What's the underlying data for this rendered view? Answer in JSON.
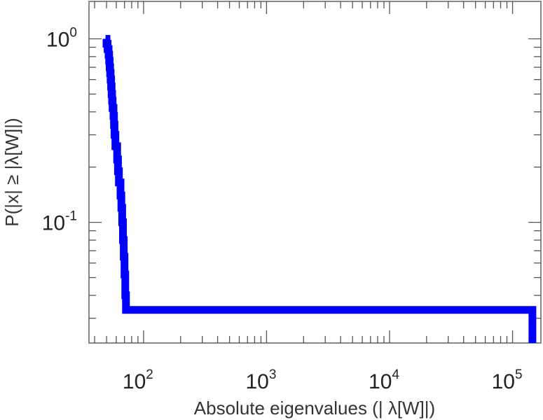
{
  "chart_data": {
    "type": "line",
    "title": "",
    "xlabel": "Absolute eigenvalues (|     λ[W]|)",
    "ylabel": "P(|x|  ≥ |λ[W]|)",
    "x_scale": "log",
    "y_scale": "log",
    "xlim": [
      36,
      170000
    ],
    "ylim": [
      0.022,
      1.6
    ],
    "x_ticks": [
      {
        "value": 100,
        "base": "10",
        "exp": "2"
      },
      {
        "value": 1000,
        "base": "10",
        "exp": "3"
      },
      {
        "value": 10000,
        "base": "10",
        "exp": "4"
      },
      {
        "value": 100000,
        "base": "10",
        "exp": "5"
      }
    ],
    "y_ticks": [
      {
        "value": 1,
        "base": "10",
        "exp": "0"
      },
      {
        "value": 0.1,
        "base": "10",
        "exp": "-1"
      }
    ],
    "grid": false,
    "series": [
      {
        "color": "#0000ff",
        "step": true,
        "points": [
          [
            49.0,
            1.0
          ],
          [
            50.0,
            0.94
          ],
          [
            51.0,
            0.88
          ],
          [
            52.0,
            0.82
          ],
          [
            52.5,
            0.76
          ],
          [
            53.0,
            0.7
          ],
          [
            53.5,
            0.65
          ],
          [
            54.0,
            0.6
          ],
          [
            54.5,
            0.55
          ],
          [
            55.0,
            0.5
          ],
          [
            55.5,
            0.46
          ],
          [
            56.0,
            0.42
          ],
          [
            57.0,
            0.38
          ],
          [
            57.5,
            0.34
          ],
          [
            58.0,
            0.3
          ],
          [
            59.0,
            0.26
          ],
          [
            61.0,
            0.22
          ],
          [
            62.0,
            0.19
          ],
          [
            63.0,
            0.165
          ],
          [
            65.0,
            0.14
          ],
          [
            66.0,
            0.12
          ],
          [
            67.0,
            0.1
          ],
          [
            68.0,
            0.08
          ],
          [
            69.0,
            0.065
          ],
          [
            70.0,
            0.052
          ],
          [
            71.0,
            0.04
          ],
          [
            72.0,
            0.0333
          ],
          [
            145000,
            0.0333
          ],
          [
            145000,
            0.022
          ]
        ]
      }
    ]
  }
}
